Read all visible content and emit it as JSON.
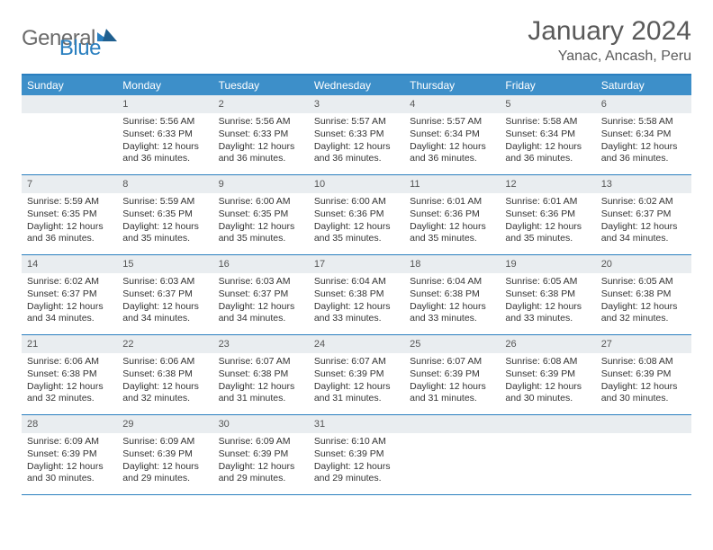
{
  "logo": {
    "text_gray": "General",
    "text_blue": "Blue"
  },
  "title": "January 2024",
  "location": "Yanac, Ancash, Peru",
  "colors": {
    "header_bg": "#3d8fc9",
    "header_border": "#2a7fbf",
    "daynum_bg": "#e9edf0",
    "text": "#333333",
    "title_text": "#5a5a5a"
  },
  "day_names": [
    "Sunday",
    "Monday",
    "Tuesday",
    "Wednesday",
    "Thursday",
    "Friday",
    "Saturday"
  ],
  "weeks": [
    [
      {
        "n": "",
        "sr": "",
        "ss": "",
        "dl": ""
      },
      {
        "n": "1",
        "sr": "5:56 AM",
        "ss": "6:33 PM",
        "dl": "12 hours and 36 minutes."
      },
      {
        "n": "2",
        "sr": "5:56 AM",
        "ss": "6:33 PM",
        "dl": "12 hours and 36 minutes."
      },
      {
        "n": "3",
        "sr": "5:57 AM",
        "ss": "6:33 PM",
        "dl": "12 hours and 36 minutes."
      },
      {
        "n": "4",
        "sr": "5:57 AM",
        "ss": "6:34 PM",
        "dl": "12 hours and 36 minutes."
      },
      {
        "n": "5",
        "sr": "5:58 AM",
        "ss": "6:34 PM",
        "dl": "12 hours and 36 minutes."
      },
      {
        "n": "6",
        "sr": "5:58 AM",
        "ss": "6:34 PM",
        "dl": "12 hours and 36 minutes."
      }
    ],
    [
      {
        "n": "7",
        "sr": "5:59 AM",
        "ss": "6:35 PM",
        "dl": "12 hours and 36 minutes."
      },
      {
        "n": "8",
        "sr": "5:59 AM",
        "ss": "6:35 PM",
        "dl": "12 hours and 35 minutes."
      },
      {
        "n": "9",
        "sr": "6:00 AM",
        "ss": "6:35 PM",
        "dl": "12 hours and 35 minutes."
      },
      {
        "n": "10",
        "sr": "6:00 AM",
        "ss": "6:36 PM",
        "dl": "12 hours and 35 minutes."
      },
      {
        "n": "11",
        "sr": "6:01 AM",
        "ss": "6:36 PM",
        "dl": "12 hours and 35 minutes."
      },
      {
        "n": "12",
        "sr": "6:01 AM",
        "ss": "6:36 PM",
        "dl": "12 hours and 35 minutes."
      },
      {
        "n": "13",
        "sr": "6:02 AM",
        "ss": "6:37 PM",
        "dl": "12 hours and 34 minutes."
      }
    ],
    [
      {
        "n": "14",
        "sr": "6:02 AM",
        "ss": "6:37 PM",
        "dl": "12 hours and 34 minutes."
      },
      {
        "n": "15",
        "sr": "6:03 AM",
        "ss": "6:37 PM",
        "dl": "12 hours and 34 minutes."
      },
      {
        "n": "16",
        "sr": "6:03 AM",
        "ss": "6:37 PM",
        "dl": "12 hours and 34 minutes."
      },
      {
        "n": "17",
        "sr": "6:04 AM",
        "ss": "6:38 PM",
        "dl": "12 hours and 33 minutes."
      },
      {
        "n": "18",
        "sr": "6:04 AM",
        "ss": "6:38 PM",
        "dl": "12 hours and 33 minutes."
      },
      {
        "n": "19",
        "sr": "6:05 AM",
        "ss": "6:38 PM",
        "dl": "12 hours and 33 minutes."
      },
      {
        "n": "20",
        "sr": "6:05 AM",
        "ss": "6:38 PM",
        "dl": "12 hours and 32 minutes."
      }
    ],
    [
      {
        "n": "21",
        "sr": "6:06 AM",
        "ss": "6:38 PM",
        "dl": "12 hours and 32 minutes."
      },
      {
        "n": "22",
        "sr": "6:06 AM",
        "ss": "6:38 PM",
        "dl": "12 hours and 32 minutes."
      },
      {
        "n": "23",
        "sr": "6:07 AM",
        "ss": "6:38 PM",
        "dl": "12 hours and 31 minutes."
      },
      {
        "n": "24",
        "sr": "6:07 AM",
        "ss": "6:39 PM",
        "dl": "12 hours and 31 minutes."
      },
      {
        "n": "25",
        "sr": "6:07 AM",
        "ss": "6:39 PM",
        "dl": "12 hours and 31 minutes."
      },
      {
        "n": "26",
        "sr": "6:08 AM",
        "ss": "6:39 PM",
        "dl": "12 hours and 30 minutes."
      },
      {
        "n": "27",
        "sr": "6:08 AM",
        "ss": "6:39 PM",
        "dl": "12 hours and 30 minutes."
      }
    ],
    [
      {
        "n": "28",
        "sr": "6:09 AM",
        "ss": "6:39 PM",
        "dl": "12 hours and 30 minutes."
      },
      {
        "n": "29",
        "sr": "6:09 AM",
        "ss": "6:39 PM",
        "dl": "12 hours and 29 minutes."
      },
      {
        "n": "30",
        "sr": "6:09 AM",
        "ss": "6:39 PM",
        "dl": "12 hours and 29 minutes."
      },
      {
        "n": "31",
        "sr": "6:10 AM",
        "ss": "6:39 PM",
        "dl": "12 hours and 29 minutes."
      },
      {
        "n": "",
        "sr": "",
        "ss": "",
        "dl": ""
      },
      {
        "n": "",
        "sr": "",
        "ss": "",
        "dl": ""
      },
      {
        "n": "",
        "sr": "",
        "ss": "",
        "dl": ""
      }
    ]
  ],
  "labels": {
    "sunrise": "Sunrise:",
    "sunset": "Sunset:",
    "daylight": "Daylight:"
  }
}
